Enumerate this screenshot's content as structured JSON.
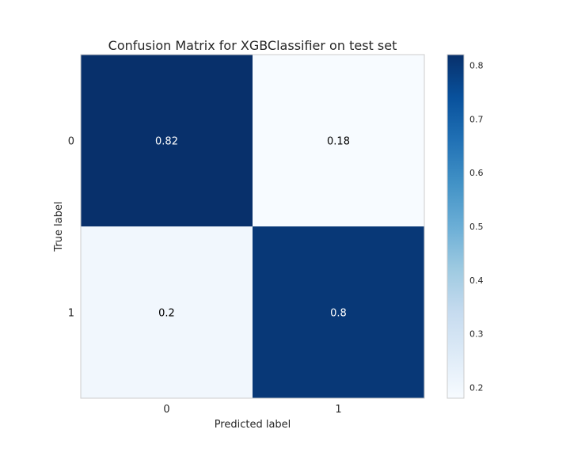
{
  "chart_data": {
    "type": "heatmap",
    "title": "Confusion Matrix for XGBClassifier on test set",
    "xlabel": "Predicted label",
    "ylabel": "True label",
    "x_categories": [
      "0",
      "1"
    ],
    "y_categories": [
      "0",
      "1"
    ],
    "values": [
      [
        0.82,
        0.18
      ],
      [
        0.2,
        0.8
      ]
    ],
    "cell_labels": [
      [
        "0.82",
        "0.18"
      ],
      [
        "0.2",
        "0.8"
      ]
    ],
    "colormap": "Blues",
    "color_range": [
      0.18,
      0.82
    ],
    "colorbar_ticks": [
      "0.8",
      "0.7",
      "0.6",
      "0.5",
      "0.4",
      "0.3",
      "0.2"
    ],
    "grid": false,
    "colors": {
      "high": "#08306b",
      "low": "#f7fbff",
      "frame": "#cccccc",
      "text_dark": "#000000",
      "text_light": "#ffffff"
    }
  }
}
